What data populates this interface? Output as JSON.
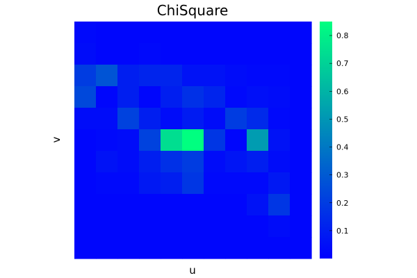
{
  "chart_data": {
    "type": "heatmap",
    "title": "ChiSquare",
    "xlabel": "u",
    "ylabel": "v",
    "rows": 11,
    "cols": 11,
    "values_row_major_top_to_bottom": [
      [
        0.03,
        0.02,
        0.02,
        0.02,
        0.02,
        0.02,
        0.02,
        0.02,
        0.02,
        0.02,
        0.02
      ],
      [
        0.04,
        0.02,
        0.02,
        0.03,
        0.02,
        0.02,
        0.02,
        0.02,
        0.02,
        0.02,
        0.02
      ],
      [
        0.2,
        0.28,
        0.1,
        0.12,
        0.12,
        0.06,
        0.06,
        0.04,
        0.03,
        0.03,
        0.02
      ],
      [
        0.24,
        0.02,
        0.1,
        0.02,
        0.1,
        0.16,
        0.12,
        0.03,
        0.05,
        0.04,
        0.02
      ],
      [
        0.04,
        0.04,
        0.22,
        0.1,
        0.04,
        0.09,
        0.04,
        0.2,
        0.14,
        0.03,
        0.02
      ],
      [
        0.02,
        0.03,
        0.04,
        0.22,
        0.74,
        0.85,
        0.18,
        0.02,
        0.52,
        0.06,
        0.02
      ],
      [
        0.02,
        0.06,
        0.04,
        0.1,
        0.16,
        0.2,
        0.04,
        0.07,
        0.1,
        0.04,
        0.02
      ],
      [
        0.02,
        0.03,
        0.03,
        0.08,
        0.1,
        0.18,
        0.03,
        0.03,
        0.03,
        0.08,
        0.02
      ],
      [
        0.02,
        0.02,
        0.02,
        0.02,
        0.02,
        0.02,
        0.02,
        0.02,
        0.06,
        0.18,
        0.02
      ],
      [
        0.02,
        0.02,
        0.02,
        0.02,
        0.02,
        0.02,
        0.02,
        0.02,
        0.02,
        0.04,
        0.02
      ],
      [
        0.02,
        0.02,
        0.02,
        0.02,
        0.02,
        0.02,
        0.02,
        0.02,
        0.02,
        0.02,
        0.02
      ]
    ],
    "colorbar": {
      "min": 0.0,
      "max": 0.85,
      "ticks": [
        0.1,
        0.2,
        0.3,
        0.4,
        0.5,
        0.6,
        0.7,
        0.8
      ],
      "tick_labels": [
        "0.1",
        "0.2",
        "0.3",
        "0.4",
        "0.5",
        "0.6",
        "0.7",
        "0.8"
      ]
    },
    "colormap": [
      "#0000ff",
      "#00ff80"
    ]
  }
}
